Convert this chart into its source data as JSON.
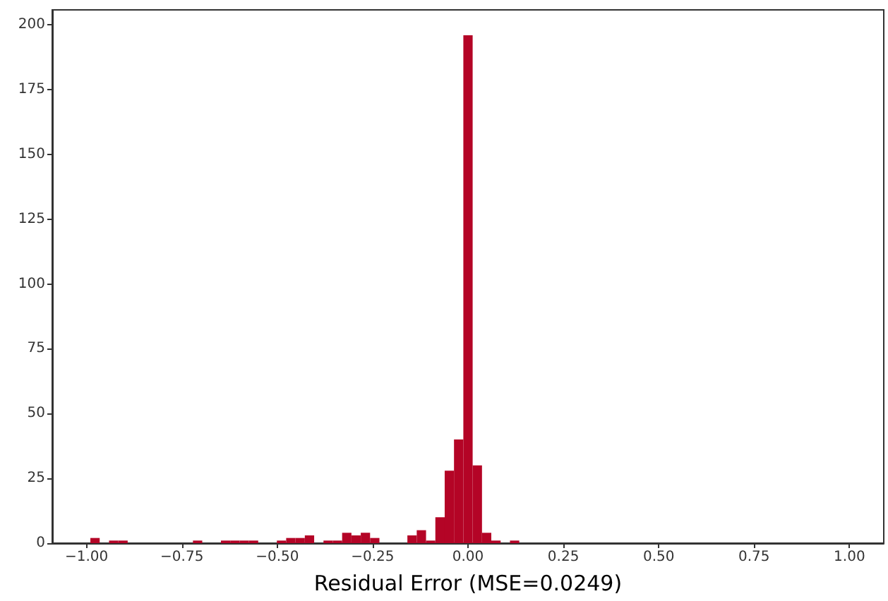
{
  "chart_data": {
    "type": "histogram",
    "xlabel": "Residual Error (MSE=0.0249)",
    "color": "#b40426",
    "bins": [
      -0.99,
      -0.9656,
      -0.9411,
      -0.9167,
      -0.8922,
      -0.8678,
      -0.8433,
      -0.8189,
      -0.7944,
      -0.77,
      -0.7456,
      -0.7211,
      -0.6967,
      -0.6722,
      -0.6478,
      -0.6233,
      -0.5989,
      -0.5744,
      -0.55,
      -0.5256,
      -0.5011,
      -0.4767,
      -0.4522,
      -0.4278,
      -0.4033,
      -0.3789,
      -0.3544,
      -0.33,
      -0.3056,
      -0.2811,
      -0.2567,
      -0.2322,
      -0.2078,
      -0.1833,
      -0.1589,
      -0.1344,
      -0.11,
      -0.0856,
      -0.0611,
      -0.0367,
      -0.0122,
      0.0122,
      0.0367,
      0.0611,
      0.0856,
      0.11,
      0.1344,
      0.1589,
      0.1833,
      0.2078,
      0.2322,
      0.2567,
      0.2811,
      0.3056,
      0.33,
      0.3544,
      0.3789,
      0.4033,
      0.4278,
      0.4522,
      0.4767,
      0.5011,
      0.5256,
      0.55,
      0.5744,
      0.5989,
      0.6233,
      0.6478,
      0.6722,
      0.6967,
      0.7211,
      0.7456,
      0.77,
      0.7944,
      0.8189,
      0.8433,
      0.8678,
      0.8922,
      0.9167,
      0.9411,
      0.9656,
      0.99
    ],
    "values": [
      2,
      0,
      1,
      1,
      0,
      0,
      0,
      0,
      0,
      0,
      0,
      1,
      0,
      0,
      1,
      1,
      1,
      1,
      0,
      0,
      1,
      2,
      2,
      3,
      0,
      1,
      1,
      4,
      3,
      4,
      2,
      0,
      0,
      0,
      3,
      5,
      1,
      10,
      28,
      40,
      196,
      30,
      4,
      1,
      0,
      1,
      0,
      0,
      0,
      0,
      0,
      0,
      0,
      0,
      0,
      0,
      0,
      0,
      0,
      0,
      0,
      0,
      0,
      0,
      0,
      0,
      0,
      0,
      0,
      0,
      0,
      0,
      0,
      0,
      0,
      0,
      0,
      0,
      0,
      0,
      0
    ],
    "xlim": [
      -1.09,
      1.09
    ],
    "ylim": [
      0,
      205.8
    ],
    "xticks": [
      {
        "value": -1,
        "label": "−1.00"
      },
      {
        "value": -0.75,
        "label": "−0.75"
      },
      {
        "value": -0.5,
        "label": "−0.50"
      },
      {
        "value": -0.25,
        "label": "−0.25"
      },
      {
        "value": 0,
        "label": "0.00"
      },
      {
        "value": 0.25,
        "label": "0.25"
      },
      {
        "value": 0.5,
        "label": "0.50"
      },
      {
        "value": 0.75,
        "label": "0.75"
      },
      {
        "value": 1,
        "label": "1.00"
      }
    ],
    "yticks": [
      0,
      25,
      50,
      75,
      100,
      125,
      150,
      175,
      200
    ],
    "grid": false
  }
}
